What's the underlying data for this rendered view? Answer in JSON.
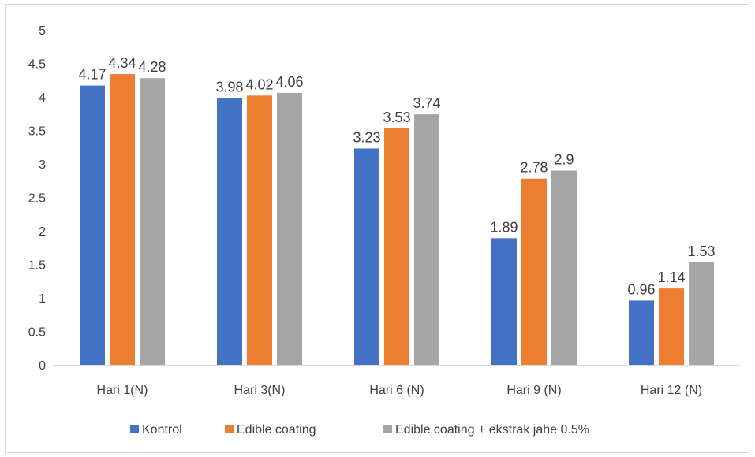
{
  "chart_data": {
    "type": "bar",
    "title": "",
    "xlabel": "",
    "ylabel": "",
    "ylim": [
      0,
      5
    ],
    "yticks": [
      "0",
      "0.5",
      "1",
      "1.5",
      "2",
      "2.5",
      "3",
      "3.5",
      "4",
      "4.5",
      "5"
    ],
    "grid": false,
    "legend_position": "bottom",
    "categories": [
      "Hari 1(N)",
      "Hari 3(N)",
      "Hari 6 (N)",
      "Hari 9 (N)",
      "Hari 12 (N)"
    ],
    "series": [
      {
        "name": "Kontrol",
        "color": "#4472C4",
        "values": [
          4.17,
          3.98,
          3.23,
          1.89,
          0.96
        ],
        "labels": [
          "4.17",
          "3.98",
          "3.23",
          "1.89",
          "0.96"
        ]
      },
      {
        "name": "Edible coating",
        "color": "#ED7D31",
        "values": [
          4.34,
          4.02,
          3.53,
          2.78,
          1.14
        ],
        "labels": [
          "4.34",
          "4.02",
          "3.53",
          "2.78",
          "1.14"
        ]
      },
      {
        "name": "Edible coating + ekstrak jahe 0.5%",
        "color": "#A5A5A5",
        "values": [
          4.28,
          4.06,
          3.74,
          2.9,
          1.53
        ],
        "labels": [
          "4.28",
          "4.06",
          "3.74",
          "2.9",
          "1.53"
        ]
      }
    ]
  }
}
